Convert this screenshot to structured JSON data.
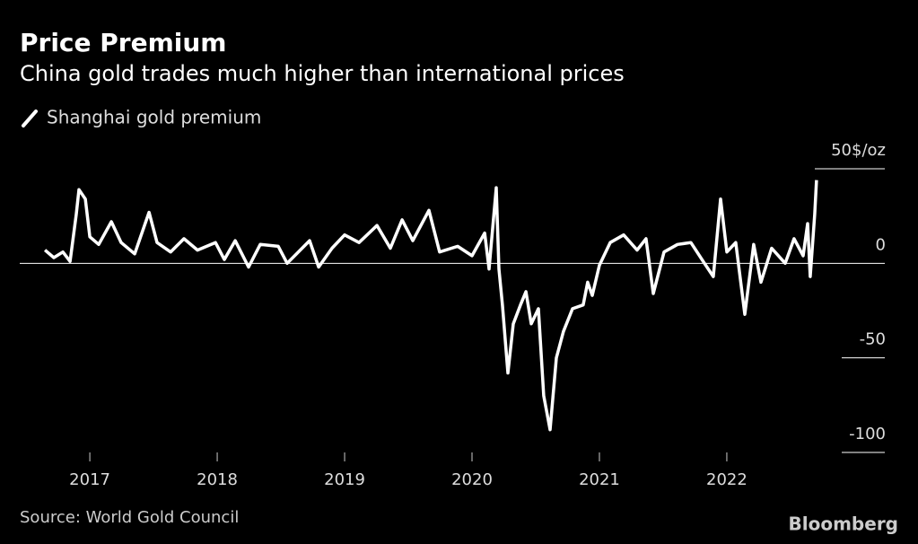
{
  "title": "Price Premium",
  "subtitle": "China gold trades much higher than international prices",
  "source": "Source: World Gold Council",
  "brand": "Bloomberg",
  "chart_data": {
    "type": "line",
    "xlim": [
      2016.45,
      2023.24
    ],
    "xticks": [
      2017,
      2018,
      2019,
      2020,
      2021,
      2022
    ],
    "ylim": [
      -100,
      50
    ],
    "yticks": [
      {
        "value": 50,
        "label": "50$/oz"
      },
      0,
      -50,
      -100
    ],
    "x": [
      2016.648,
      2016.718,
      2016.789,
      2016.845,
      2016.894,
      2016.915,
      2016.965,
      2017.0,
      2017.07,
      2017.169,
      2017.246,
      2017.352,
      2017.465,
      2017.528,
      2017.634,
      2017.739,
      2017.845,
      2017.986,
      2018.056,
      2018.141,
      2018.246,
      2018.338,
      2018.479,
      2018.549,
      2018.725,
      2018.796,
      2018.901,
      2019.0,
      2019.113,
      2019.254,
      2019.359,
      2019.451,
      2019.535,
      2019.662,
      2019.746,
      2019.887,
      2020.0,
      2020.099,
      2020.134,
      2020.19,
      2020.211,
      2020.239,
      2020.282,
      2020.324,
      2020.38,
      2020.423,
      2020.465,
      2020.521,
      2020.563,
      2020.613,
      2020.662,
      2020.718,
      2020.789,
      2020.873,
      2020.908,
      2020.944,
      2021.0,
      2021.085,
      2021.19,
      2021.296,
      2021.366,
      2021.423,
      2021.507,
      2021.613,
      2021.718,
      2021.824,
      2021.894,
      2021.951,
      2022.0,
      2022.07,
      2022.141,
      2022.211,
      2022.268,
      2022.352,
      2022.458,
      2022.528,
      2022.599,
      2022.634,
      2022.655,
      2022.69,
      2022.704
    ],
    "series": [
      {
        "name": "Shanghai gold premium",
        "color": "#ffffff",
        "values": [
          7,
          3,
          6,
          1,
          26,
          39,
          34,
          14,
          10,
          22,
          11,
          5,
          27,
          11,
          6,
          13,
          7,
          11,
          2,
          12,
          -2,
          10,
          9,
          0,
          12,
          -2,
          8,
          15,
          11,
          20,
          8,
          23,
          12,
          28,
          6,
          9,
          4,
          16,
          -3,
          40,
          -3,
          -22,
          -58,
          -32,
          -22,
          -15,
          -32,
          -24,
          -70,
          -88,
          -50,
          -36,
          -24,
          -22,
          -10,
          -17,
          -1,
          11,
          15,
          7,
          13,
          -16,
          6,
          10,
          11,
          0,
          -7,
          34,
          6,
          11,
          -27,
          10,
          -10,
          8,
          0,
          13,
          4,
          21,
          -7,
          26,
          44
        ]
      }
    ]
  }
}
